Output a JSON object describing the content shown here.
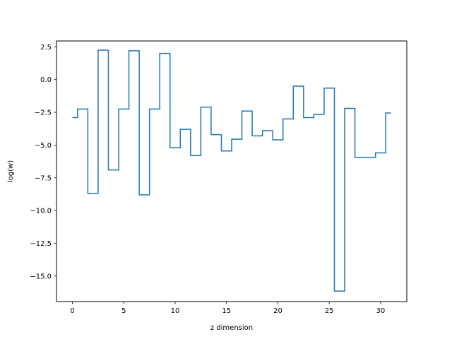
{
  "chart_data": {
    "type": "line",
    "drawstyle": "steps-mid",
    "title": "",
    "xlabel": "z dimension",
    "ylabel": "log(w)",
    "xlim": [
      -1.55,
      32.55
    ],
    "ylim": [
      -16.95,
      2.95
    ],
    "grid": false,
    "series": [
      {
        "color": "#1f77b4",
        "x": [
          0,
          1,
          2,
          3,
          4,
          5,
          6,
          7,
          8,
          9,
          10,
          11,
          12,
          13,
          14,
          15,
          16,
          17,
          18,
          19,
          20,
          21,
          22,
          23,
          24,
          25,
          26,
          27,
          28,
          29,
          30,
          31
        ],
        "y": [
          -2.9,
          -2.25,
          -8.7,
          2.25,
          -6.9,
          -2.25,
          2.2,
          -8.8,
          -2.25,
          2.0,
          -5.2,
          -3.8,
          -5.8,
          -2.1,
          -4.2,
          -5.45,
          -4.55,
          -2.4,
          -4.3,
          -3.9,
          -4.6,
          -3.0,
          -0.5,
          -2.9,
          -2.65,
          -0.65,
          -16.15,
          -2.2,
          -5.95,
          -5.95,
          -5.6,
          -2.55
        ]
      }
    ],
    "xticks": [
      0,
      5,
      10,
      15,
      20,
      25,
      30
    ],
    "xtick_labels": [
      "0",
      "5",
      "10",
      "15",
      "20",
      "25",
      "30"
    ],
    "yticks": [
      2.5,
      0.0,
      -2.5,
      -5.0,
      -7.5,
      -10.0,
      -12.5,
      -15.0
    ],
    "ytick_labels": [
      "2.5",
      "0.0",
      "−2.5",
      "−5.0",
      "−7.5",
      "−10.0",
      "−12.5",
      "−15.0"
    ]
  }
}
